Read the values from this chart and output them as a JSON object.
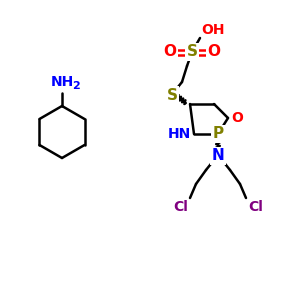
{
  "bg_color": "#ffffff",
  "bond_color": "#000000",
  "sulfur_color": "#808000",
  "oxygen_color": "#ff0000",
  "nitrogen_color": "#0000ff",
  "phosphorus_color": "#808000",
  "chlorine_color": "#800080",
  "figsize": [
    3.0,
    3.0
  ],
  "dpi": 100,
  "xlim": [
    0,
    300
  ],
  "ylim": [
    0,
    300
  ]
}
